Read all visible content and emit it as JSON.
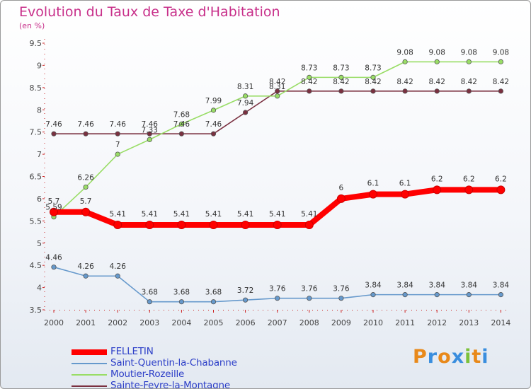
{
  "title": "Evolution du Taux de Taxe d'Habitation",
  "subtitle": "(en %)",
  "logo": {
    "letters": [
      "P",
      "r",
      "o",
      "x",
      "i",
      "t",
      "i"
    ],
    "colors": [
      "#e8891a",
      "#3a8ede",
      "#e8891a",
      "#3a8ede",
      "#7cc13a",
      "#e8891a",
      "#3a8ede"
    ]
  },
  "chart_data": {
    "type": "line",
    "x": [
      "2000",
      "2001",
      "2002",
      "2003",
      "2004",
      "2005",
      "2006",
      "2007",
      "2008",
      "2009",
      "2010",
      "2011",
      "2012",
      "2013",
      "2014"
    ],
    "y_ticks": [
      "3.5",
      "4",
      "4.5",
      "5",
      "5.5",
      "6",
      "6.5",
      "7",
      "7.5",
      "8",
      "8.5",
      "9",
      "9.5"
    ],
    "ylim": [
      3.5,
      9.5
    ],
    "grid": false,
    "legend_position": "bottom-left",
    "series": [
      {
        "name": "FELLETIN",
        "color": "#ff0000",
        "values": [
          5.7,
          5.7,
          5.41,
          5.41,
          5.41,
          5.41,
          5.41,
          5.41,
          5.41,
          6.0,
          6.1,
          6.1,
          6.2,
          6.2,
          6.2
        ],
        "labels": [
          "5.7",
          "5.7",
          "5.41",
          "5.41",
          "5.41",
          "5.41",
          "5.41",
          "5.41",
          "5.41",
          "6",
          "6.1",
          "6.1",
          "6.2",
          "6.2",
          "6.2"
        ]
      },
      {
        "name": "Saint-Quentin-la-Chabanne",
        "color": "#6699cc",
        "values": [
          4.46,
          4.26,
          4.26,
          3.68,
          3.68,
          3.68,
          3.72,
          3.76,
          3.76,
          3.76,
          3.84,
          3.84,
          3.84,
          3.84,
          3.84
        ],
        "labels": [
          "4.46",
          "4.26",
          "4.26",
          "3.68",
          "3.68",
          "3.68",
          "3.72",
          "3.76",
          "3.76",
          "3.76",
          "3.84",
          "3.84",
          "3.84",
          "3.84",
          "3.84"
        ]
      },
      {
        "name": "Moutier-Rozeille",
        "color": "#99dd66",
        "values": [
          5.59,
          6.26,
          7.0,
          7.33,
          7.68,
          7.99,
          8.31,
          8.31,
          8.73,
          8.73,
          8.73,
          9.08,
          9.08,
          9.08,
          9.08
        ],
        "labels": [
          "5.59",
          "6.26",
          "7",
          "7.33",
          "7.68",
          "7.99",
          "8.31",
          "8.31",
          "8.73",
          "8.73",
          "8.73",
          "9.08",
          "9.08",
          "9.08",
          "9.08"
        ]
      },
      {
        "name": "Sainte-Feyre-la-Montagne",
        "color": "#7a3040",
        "values": [
          7.46,
          7.46,
          7.46,
          7.46,
          7.46,
          7.46,
          7.94,
          8.42,
          8.42,
          8.42,
          8.42,
          8.42,
          8.42,
          8.42,
          8.42
        ],
        "labels": [
          "7.46",
          "7.46",
          "7.46",
          "7.46",
          "7.46",
          "7.46",
          "7.94",
          "8.42",
          "8.42",
          "8.42",
          "8.42",
          "8.42",
          "8.42",
          "8.42",
          "8.42"
        ]
      }
    ]
  }
}
